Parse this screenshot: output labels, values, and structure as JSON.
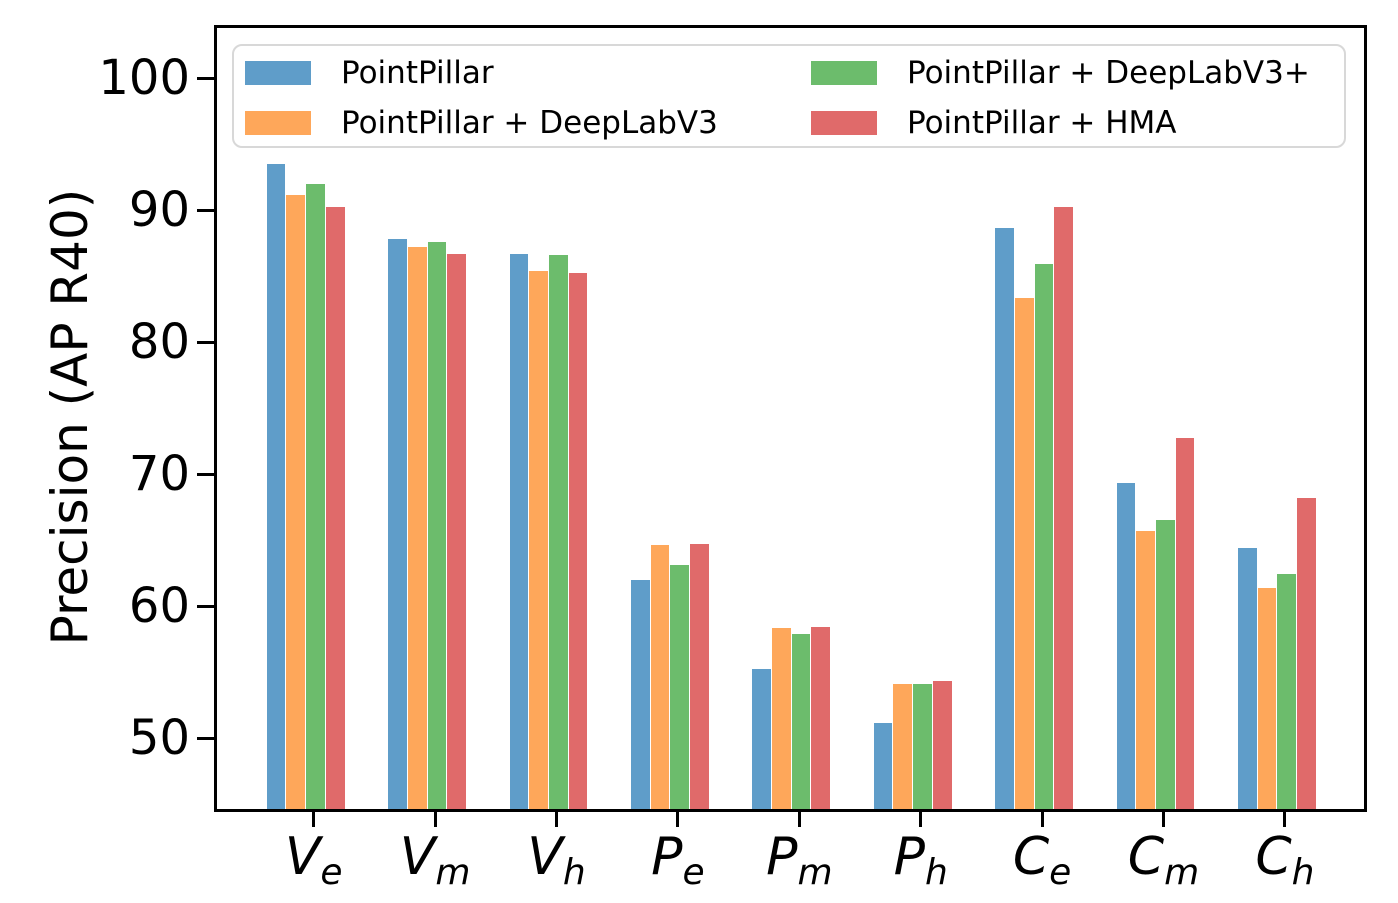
{
  "chart_data": {
    "type": "bar",
    "title": "",
    "xlabel": "",
    "ylabel": "Precision (AP R40)",
    "categories": [
      "V_e",
      "V_m",
      "V_h",
      "P_e",
      "P_m",
      "P_h",
      "C_e",
      "C_m",
      "C_h"
    ],
    "series": [
      {
        "name": "PointPillar",
        "color": "#5f9dc9",
        "values": [
          93.5,
          87.8,
          86.7,
          62.0,
          55.2,
          51.1,
          88.6,
          69.3,
          64.4
        ]
      },
      {
        "name": "PointPillar + DeepLabV3",
        "color": "#fea75a",
        "values": [
          91.1,
          87.2,
          85.4,
          64.6,
          58.3,
          54.1,
          83.3,
          65.7,
          61.4
        ]
      },
      {
        "name": "PointPillar + DeepLabV3+",
        "color": "#6cbc6c",
        "values": [
          92.0,
          87.6,
          86.6,
          63.1,
          57.9,
          54.1,
          85.9,
          66.5,
          62.4
        ]
      },
      {
        "name": "PointPillar + HMA",
        "color": "#e06a6a",
        "values": [
          90.2,
          86.7,
          85.2,
          64.7,
          58.4,
          54.3,
          90.2,
          72.7,
          68.2
        ]
      }
    ],
    "yticks": [
      50,
      60,
      70,
      80,
      90,
      100
    ],
    "ylim": [
      44.5,
      104.0
    ],
    "grid": false,
    "legend_position": "upper center, 2 columns",
    "colors": {
      "spine": "#000000",
      "legend_border": "#d8d8d8",
      "background": "#ffffff"
    }
  }
}
